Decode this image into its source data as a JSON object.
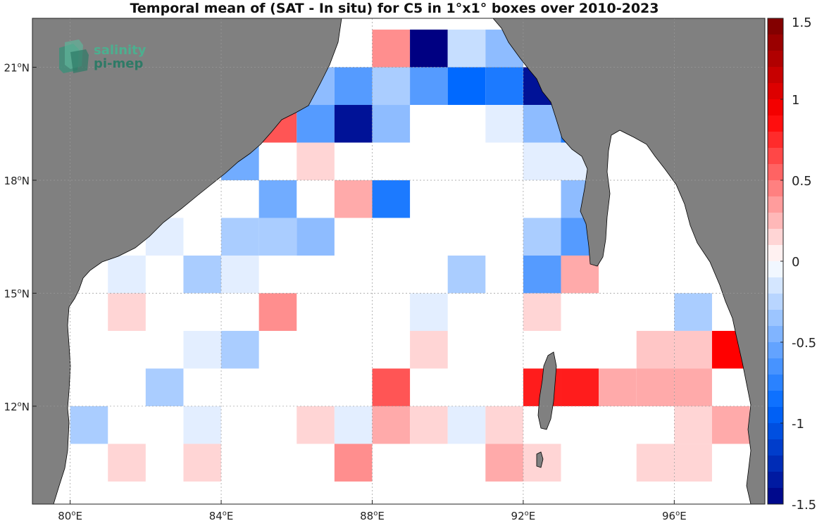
{
  "title": "Temporal mean of (SAT - In situ) for C5 in 1°x1° boxes over 2010-2023",
  "logo": {
    "line1": "salinity",
    "line2": "pi-mep"
  },
  "map": {
    "lon_range": [
      79,
      98.4
    ],
    "lat_range": [
      9.4,
      22.3
    ],
    "land_color": "#808080",
    "ocean_color": "#ffffff",
    "grid": true,
    "lon_ticks": [
      {
        "value": 80,
        "deg": "80",
        "hemi": "E"
      },
      {
        "value": 84,
        "deg": "84",
        "hemi": "E"
      },
      {
        "value": 88,
        "deg": "88",
        "hemi": "E"
      },
      {
        "value": 92,
        "deg": "92",
        "hemi": "E"
      },
      {
        "value": 96,
        "deg": "96",
        "hemi": "E"
      }
    ],
    "lat_ticks": [
      {
        "value": 21,
        "deg": "21",
        "hemi": "N"
      },
      {
        "value": 18,
        "deg": "18",
        "hemi": "N"
      },
      {
        "value": 15,
        "deg": "15",
        "hemi": "N"
      },
      {
        "value": 12,
        "deg": "12",
        "hemi": "N"
      }
    ],
    "cells": [
      {
        "lon": 88.5,
        "lat": 21.5,
        "value": 0.4
      },
      {
        "lon": 89.5,
        "lat": 21.5,
        "value": -1.5
      },
      {
        "lon": 90.5,
        "lat": 21.5,
        "value": -0.2
      },
      {
        "lon": 91.5,
        "lat": 21.5,
        "value": -0.4
      },
      {
        "lon": 86.5,
        "lat": 20.5,
        "value": -0.4
      },
      {
        "lon": 87.5,
        "lat": 20.5,
        "value": -0.6
      },
      {
        "lon": 88.5,
        "lat": 20.5,
        "value": -0.3
      },
      {
        "lon": 89.5,
        "lat": 20.5,
        "value": -0.6
      },
      {
        "lon": 90.5,
        "lat": 20.5,
        "value": -0.9
      },
      {
        "lon": 91.5,
        "lat": 20.5,
        "value": -0.8
      },
      {
        "lon": 92.5,
        "lat": 20.5,
        "value": -1.4
      },
      {
        "lon": 85.5,
        "lat": 19.5,
        "value": 0.6
      },
      {
        "lon": 86.5,
        "lat": 19.5,
        "value": -0.6
      },
      {
        "lon": 87.5,
        "lat": 19.5,
        "value": -1.4
      },
      {
        "lon": 88.5,
        "lat": 19.5,
        "value": -0.4
      },
      {
        "lon": 91.5,
        "lat": 19.5,
        "value": -0.1
      },
      {
        "lon": 92.5,
        "lat": 19.5,
        "value": -0.4
      },
      {
        "lon": 93.5,
        "lat": 19.5,
        "value": -0.8
      },
      {
        "lon": 84.5,
        "lat": 18.5,
        "value": -0.5
      },
      {
        "lon": 86.5,
        "lat": 18.5,
        "value": 0.15
      },
      {
        "lon": 92.5,
        "lat": 18.5,
        "value": -0.1
      },
      {
        "lon": 93.5,
        "lat": 18.5,
        "value": -0.1
      },
      {
        "lon": 85.5,
        "lat": 17.5,
        "value": -0.5
      },
      {
        "lon": 87.5,
        "lat": 17.5,
        "value": 0.3
      },
      {
        "lon": 88.5,
        "lat": 17.5,
        "value": -0.8
      },
      {
        "lon": 93.5,
        "lat": 17.5,
        "value": -0.4
      },
      {
        "lon": 82.5,
        "lat": 16.5,
        "value": -0.1
      },
      {
        "lon": 84.5,
        "lat": 16.5,
        "value": -0.3
      },
      {
        "lon": 85.5,
        "lat": 16.5,
        "value": -0.3
      },
      {
        "lon": 86.5,
        "lat": 16.5,
        "value": -0.4
      },
      {
        "lon": 92.5,
        "lat": 16.5,
        "value": -0.3
      },
      {
        "lon": 93.5,
        "lat": 16.5,
        "value": -0.6
      },
      {
        "lon": 81.5,
        "lat": 15.5,
        "value": -0.1
      },
      {
        "lon": 83.5,
        "lat": 15.5,
        "value": -0.3
      },
      {
        "lon": 84.5,
        "lat": 15.5,
        "value": -0.1
      },
      {
        "lon": 90.5,
        "lat": 15.5,
        "value": -0.3
      },
      {
        "lon": 92.5,
        "lat": 15.5,
        "value": -0.6
      },
      {
        "lon": 93.5,
        "lat": 15.5,
        "value": 0.3
      },
      {
        "lon": 81.5,
        "lat": 14.5,
        "value": 0.15
      },
      {
        "lon": 85.5,
        "lat": 14.5,
        "value": 0.4
      },
      {
        "lon": 89.5,
        "lat": 14.5,
        "value": -0.1
      },
      {
        "lon": 92.5,
        "lat": 14.5,
        "value": 0.15
      },
      {
        "lon": 96.5,
        "lat": 14.5,
        "value": -0.3
      },
      {
        "lon": 83.5,
        "lat": 13.5,
        "value": -0.1
      },
      {
        "lon": 84.5,
        "lat": 13.5,
        "value": -0.3
      },
      {
        "lon": 89.5,
        "lat": 13.5,
        "value": 0.15
      },
      {
        "lon": 95.5,
        "lat": 13.5,
        "value": 0.2
      },
      {
        "lon": 96.5,
        "lat": 13.5,
        "value": 0.2
      },
      {
        "lon": 97.5,
        "lat": 13.5,
        "value": 0.9
      },
      {
        "lon": 82.5,
        "lat": 12.5,
        "value": -0.3
      },
      {
        "lon": 88.5,
        "lat": 12.5,
        "value": 0.6
      },
      {
        "lon": 92.5,
        "lat": 12.5,
        "value": 0.8
      },
      {
        "lon": 93.5,
        "lat": 12.5,
        "value": 0.8
      },
      {
        "lon": 94.5,
        "lat": 12.5,
        "value": 0.3
      },
      {
        "lon": 95.5,
        "lat": 12.5,
        "value": 0.3
      },
      {
        "lon": 96.5,
        "lat": 12.5,
        "value": 0.3
      },
      {
        "lon": 80.5,
        "lat": 11.5,
        "value": -0.3
      },
      {
        "lon": 83.5,
        "lat": 11.5,
        "value": -0.1
      },
      {
        "lon": 86.5,
        "lat": 11.5,
        "value": 0.15
      },
      {
        "lon": 87.5,
        "lat": 11.5,
        "value": -0.1
      },
      {
        "lon": 88.5,
        "lat": 11.5,
        "value": 0.3
      },
      {
        "lon": 89.5,
        "lat": 11.5,
        "value": 0.15
      },
      {
        "lon": 90.5,
        "lat": 11.5,
        "value": -0.1
      },
      {
        "lon": 91.5,
        "lat": 11.5,
        "value": 0.15
      },
      {
        "lon": 96.5,
        "lat": 11.5,
        "value": 0.15
      },
      {
        "lon": 97.5,
        "lat": 11.5,
        "value": 0.3
      },
      {
        "lon": 81.5,
        "lat": 10.5,
        "value": 0.15
      },
      {
        "lon": 83.5,
        "lat": 10.5,
        "value": 0.15
      },
      {
        "lon": 87.5,
        "lat": 10.5,
        "value": 0.4
      },
      {
        "lon": 91.5,
        "lat": 10.5,
        "value": 0.3
      },
      {
        "lon": 92.5,
        "lat": 10.5,
        "value": 0.15
      },
      {
        "lon": 95.5,
        "lat": 10.5,
        "value": 0.15
      },
      {
        "lon": 96.5,
        "lat": 10.5,
        "value": 0.15
      }
    ]
  },
  "colorbar": {
    "min": -1.5,
    "max": 1.5,
    "levels": 30,
    "ticks": [
      {
        "value": 1.5,
        "label": "1.5"
      },
      {
        "value": 1,
        "label": "1"
      },
      {
        "value": 0.5,
        "label": "0.5"
      },
      {
        "value": 0,
        "label": "0"
      },
      {
        "value": -0.5,
        "label": "-0.5"
      },
      {
        "value": -1,
        "label": "-1"
      },
      {
        "value": -1.5,
        "label": "-1.5"
      }
    ]
  }
}
